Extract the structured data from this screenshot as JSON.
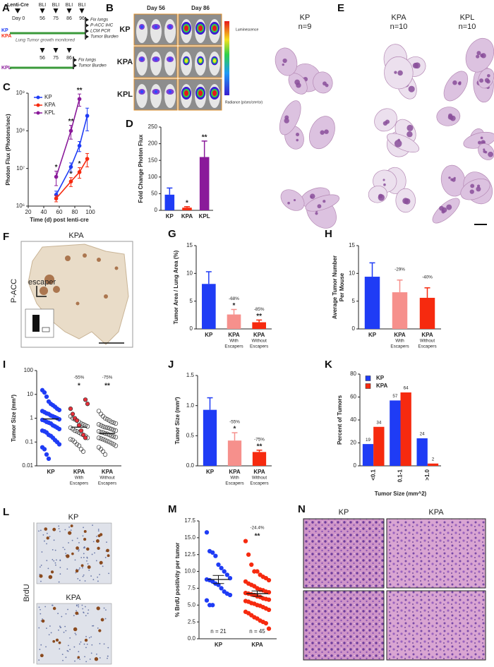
{
  "figure": {
    "A": {
      "letter": "A",
      "lenti": "Lenti-Cre",
      "day0": "Day 0",
      "bli": [
        "BLI",
        "BLI",
        "BLI",
        "BLI"
      ],
      "days": [
        "56",
        "75",
        "86",
        "96"
      ],
      "groups": [
        "KP",
        "KPA",
        "KPL"
      ],
      "monitor": "Lung Tumor growth monitored",
      "endpoints": [
        "Fix lungs",
        "P-ACC IHC",
        "LCM PCR",
        "Tumor Burden"
      ],
      "kpl_days": [
        "56",
        "75",
        "86"
      ],
      "kpl_endpoints": [
        "Fix lungs",
        "Tumor Burden"
      ]
    },
    "B": {
      "letter": "B",
      "days": [
        "Day 56",
        "Day 86"
      ],
      "rows": [
        "KP",
        "KPA",
        "KPL"
      ],
      "colorbar": "Luminescence",
      "units": "Radiance (p/sec/cm²/sr)"
    },
    "E": {
      "letter": "E",
      "columns": [
        {
          "name": "KP",
          "n": "n=9"
        },
        {
          "name": "KPA",
          "n": "n=10"
        },
        {
          "name": "KPL",
          "n": "n=10"
        }
      ]
    },
    "F": {
      "letter": "F",
      "title": "KPA",
      "escaper": "escaper",
      "stain": "P-ACC"
    },
    "L": {
      "letter": "L",
      "rows": [
        "KP",
        "KPA"
      ],
      "stain": "BrdU"
    },
    "N": {
      "letter": "N",
      "columns": [
        "KP",
        "KPA"
      ]
    }
  },
  "chart_data": [
    {
      "panel": "C",
      "type": "line",
      "log_y": true,
      "y_label": "Photon Flux (Photons/sec)",
      "x_label": "Time (d) post lenti-cre",
      "xlim": [
        20,
        100
      ],
      "xticks": [
        20,
        40,
        60,
        80,
        100
      ],
      "ylim": [
        1000000,
        1000000000
      ],
      "yticks": [
        {
          "value": 1000000,
          "label": "10⁶"
        },
        {
          "value": 10000000,
          "label": "10⁷"
        },
        {
          "value": 100000000,
          "label": "10⁸"
        },
        {
          "value": 1000000000,
          "label": "10⁹"
        }
      ],
      "legend": "upper left",
      "series": [
        {
          "name": "KP",
          "color": "#1f3cf5",
          "x": [
            56,
            75,
            86,
            96
          ],
          "values": [
            2000000,
            11000000,
            40000000,
            250000000
          ],
          "errors": [
            500000,
            3000000,
            12000000,
            150000000
          ]
        },
        {
          "name": "KPA",
          "color": "#f62a0f",
          "x": [
            56,
            75,
            86,
            96
          ],
          "values": [
            1600000,
            4500000,
            8000000,
            18000000
          ],
          "errors": [
            300000,
            1200000,
            2500000,
            7000000
          ],
          "significance": [
            null,
            "*",
            "*",
            null
          ]
        },
        {
          "name": "KPL",
          "color": "#8a1a9a",
          "x": [
            56,
            75,
            86
          ],
          "values": [
            6000000,
            100000000,
            700000000
          ],
          "errors": [
            2500000,
            40000000,
            250000000
          ],
          "significance": [
            "*",
            "**",
            "**"
          ]
        }
      ]
    },
    {
      "panel": "D",
      "type": "bar",
      "y_label": "Fold Change Photon  Flux",
      "categories": [
        [
          "KP"
        ],
        [
          "KPA"
        ],
        [
          "KPL"
        ]
      ],
      "values": [
        47,
        8,
        160
      ],
      "errors": [
        20,
        3,
        48
      ],
      "colors": [
        "#1f3cf5",
        "#f62a0f",
        "#8a1a9a"
      ],
      "significance": [
        null,
        "*",
        "**"
      ],
      "ylim": [
        0,
        250
      ],
      "yticks": [
        0,
        50,
        100,
        150,
        200,
        250
      ]
    },
    {
      "panel": "G",
      "type": "bar",
      "y_label": "Tumor Area / Lung Area (%)",
      "categories": [
        [
          "KP"
        ],
        [
          "KPA",
          "With",
          "Escapers"
        ],
        [
          "KPA",
          "Without",
          "Escapers"
        ]
      ],
      "values": [
        8.1,
        2.6,
        1.2
      ],
      "errors": [
        2.2,
        0.9,
        0.4
      ],
      "colors": [
        "#1f3cf5",
        "#f6908c",
        "#f62a0f"
      ],
      "change_labels": [
        null,
        "-68%",
        "-85%"
      ],
      "significance": [
        null,
        "*",
        "**"
      ],
      "ylim": [
        0,
        15
      ],
      "yticks": [
        0,
        5,
        10,
        15
      ]
    },
    {
      "panel": "H",
      "type": "bar",
      "y_label": [
        "Average Tumor Number",
        "Per Mouse"
      ],
      "categories": [
        [
          "KP"
        ],
        [
          "KPA",
          "With",
          "Escapers"
        ],
        [
          "KPA",
          "Without",
          "Escapers"
        ]
      ],
      "values": [
        9.4,
        6.6,
        5.6
      ],
      "errors": [
        2.5,
        2.2,
        1.8
      ],
      "colors": [
        "#1f3cf5",
        "#f6908c",
        "#f62a0f"
      ],
      "change_labels": [
        null,
        "-29%",
        "-40%"
      ],
      "ylim": [
        0,
        15
      ],
      "yticks": [
        0,
        5,
        10,
        15
      ]
    },
    {
      "panel": "I",
      "type": "strip",
      "log_y": true,
      "y_label": "Tumor Size (mm²)",
      "categories": [
        [
          "KP"
        ],
        [
          "KPA",
          "With",
          "Escapers"
        ],
        [
          "KPA",
          "Without",
          "Escapers"
        ]
      ],
      "groups": [
        {
          "category": 0,
          "fill": "#1f3cf5",
          "stroke": "#1f3cf5",
          "values": [
            15,
            12,
            8,
            5,
            4,
            3.5,
            3,
            2.5,
            2.2,
            2,
            1.8,
            1.6,
            1.5,
            1.3,
            1.2,
            1.1,
            1,
            0.9,
            0.85,
            0.8,
            0.7,
            0.65,
            0.6,
            0.5,
            0.45,
            0.4,
            0.35,
            0.3,
            0.28,
            0.25,
            0.2,
            0.18,
            0.15,
            0.12,
            0.1,
            0.08,
            0.06,
            0.05,
            0.03,
            0.02
          ]
        },
        {
          "category": 1,
          "fill": "none",
          "stroke": "#333333",
          "values": [
            1.2,
            1,
            0.9,
            0.8,
            0.7,
            0.6,
            0.55,
            0.5,
            0.45,
            0.4,
            0.35,
            0.3,
            0.28,
            0.25,
            0.22,
            0.2,
            0.18,
            0.15,
            0.13,
            0.12,
            0.1,
            0.08,
            0.07,
            0.05,
            0.04
          ]
        },
        {
          "category": 1,
          "fill": "#e8303a",
          "stroke": "#333333",
          "values": [
            6,
            4,
            2.5,
            1.5,
            1,
            0.8,
            0.5,
            0.3,
            0.2,
            0.15
          ]
        },
        {
          "category": 2,
          "fill": "none",
          "stroke": "#333333",
          "values": [
            2,
            1.5,
            1.2,
            1,
            0.9,
            0.8,
            0.7,
            0.65,
            0.6,
            0.55,
            0.5,
            0.45,
            0.42,
            0.4,
            0.38,
            0.35,
            0.32,
            0.3,
            0.28,
            0.26,
            0.25,
            0.23,
            0.22,
            0.2,
            0.18,
            0.17,
            0.16,
            0.15,
            0.14,
            0.13,
            0.12,
            0.11,
            0.1,
            0.09,
            0.08,
            0.07,
            0.06,
            0.05,
            0.04,
            0.03
          ]
        }
      ],
      "means": [
        0.93,
        0.42,
        0.23
      ],
      "change_labels": [
        null,
        "-55%",
        "-75%"
      ],
      "significance": [
        null,
        "*",
        "**"
      ],
      "ylim": [
        0.01,
        100
      ],
      "yticks": [
        0.01,
        0.1,
        1,
        10,
        100
      ]
    },
    {
      "panel": "J",
      "type": "bar",
      "y_label": "Tumor Size (mm²)",
      "categories": [
        [
          "KP"
        ],
        [
          "KPA",
          "With",
          "Escapers"
        ],
        [
          "KPA",
          "Without",
          "Escapers"
        ]
      ],
      "values": [
        0.93,
        0.42,
        0.23
      ],
      "errors": [
        0.2,
        0.13,
        0.03
      ],
      "colors": [
        "#1f3cf5",
        "#f6908c",
        "#f62a0f"
      ],
      "change_labels": [
        null,
        "-55%",
        "-75%"
      ],
      "significance": [
        null,
        "*",
        "**"
      ],
      "ylim": [
        0,
        1.5
      ],
      "yticks": [
        {
          "value": 0,
          "label": "0.0"
        },
        0.5,
        {
          "value": 1,
          "label": "1.0"
        },
        1.5
      ]
    },
    {
      "panel": "K",
      "type": "bar",
      "y_label": "Percent of Tumors",
      "x_label": "Tumor Size (mm^2)",
      "categories": [
        "<0.1",
        "0.1-1",
        ">1.0"
      ],
      "series": [
        {
          "name": "KP",
          "color": "#1f3cf5",
          "values": [
            19,
            57,
            24
          ]
        },
        {
          "name": "KPA",
          "color": "#f62a0f",
          "values": [
            34,
            64,
            2
          ]
        }
      ],
      "legend": "upper left",
      "ylim": [
        0,
        80
      ],
      "yticks": [
        0,
        20,
        40,
        60,
        80
      ]
    },
    {
      "panel": "M",
      "type": "strip",
      "y_label": "% BrdU positivity per tumor",
      "categories": [
        [
          "KP"
        ],
        [
          "KPA"
        ]
      ],
      "groups": [
        {
          "category": 0,
          "fill": "#1f3cf5",
          "stroke": "#1f3cf5",
          "values": [
            15.8,
            13,
            12.8,
            12.3,
            11,
            10.5,
            10,
            9.5,
            9,
            8.8,
            8.7,
            8.5,
            8.2,
            8,
            7.5,
            7,
            6.7,
            6.5,
            5.7,
            5,
            5
          ]
        },
        {
          "category": 1,
          "fill": "#f62a0f",
          "stroke": "#f62a0f",
          "values": [
            14.5,
            12.5,
            11,
            10,
            10,
            9.5,
            9.2,
            9,
            8.7,
            8.5,
            8.2,
            8,
            7.8,
            7.5,
            7.3,
            7.2,
            7,
            6.9,
            6.8,
            6.7,
            6.6,
            6.5,
            6.3,
            6.2,
            6,
            5.9,
            5.8,
            5.6,
            5.5,
            5.3,
            5.2,
            5,
            4.9,
            4.7,
            4.5,
            4.3,
            4,
            3.8,
            3.5,
            3.2,
            3,
            2.7,
            2.5,
            2.3,
            1.5
          ]
        }
      ],
      "means": [
        8.8,
        6.7
      ],
      "mean_errors": [
        0.6,
        0.4
      ],
      "change_labels": [
        null,
        "-24.4%"
      ],
      "significance": [
        null,
        "**"
      ],
      "n_labels": [
        "n = 21",
        "n = 45"
      ],
      "ylim": [
        0,
        17.5
      ],
      "yticks": [
        {
          "value": 0,
          "label": "0.0"
        },
        2.5,
        {
          "value": 5,
          "label": "5.0"
        },
        7.5,
        {
          "value": 10,
          "label": "10.0"
        },
        12.5,
        {
          "value": 15,
          "label": "15.0"
        },
        17.5
      ]
    }
  ]
}
